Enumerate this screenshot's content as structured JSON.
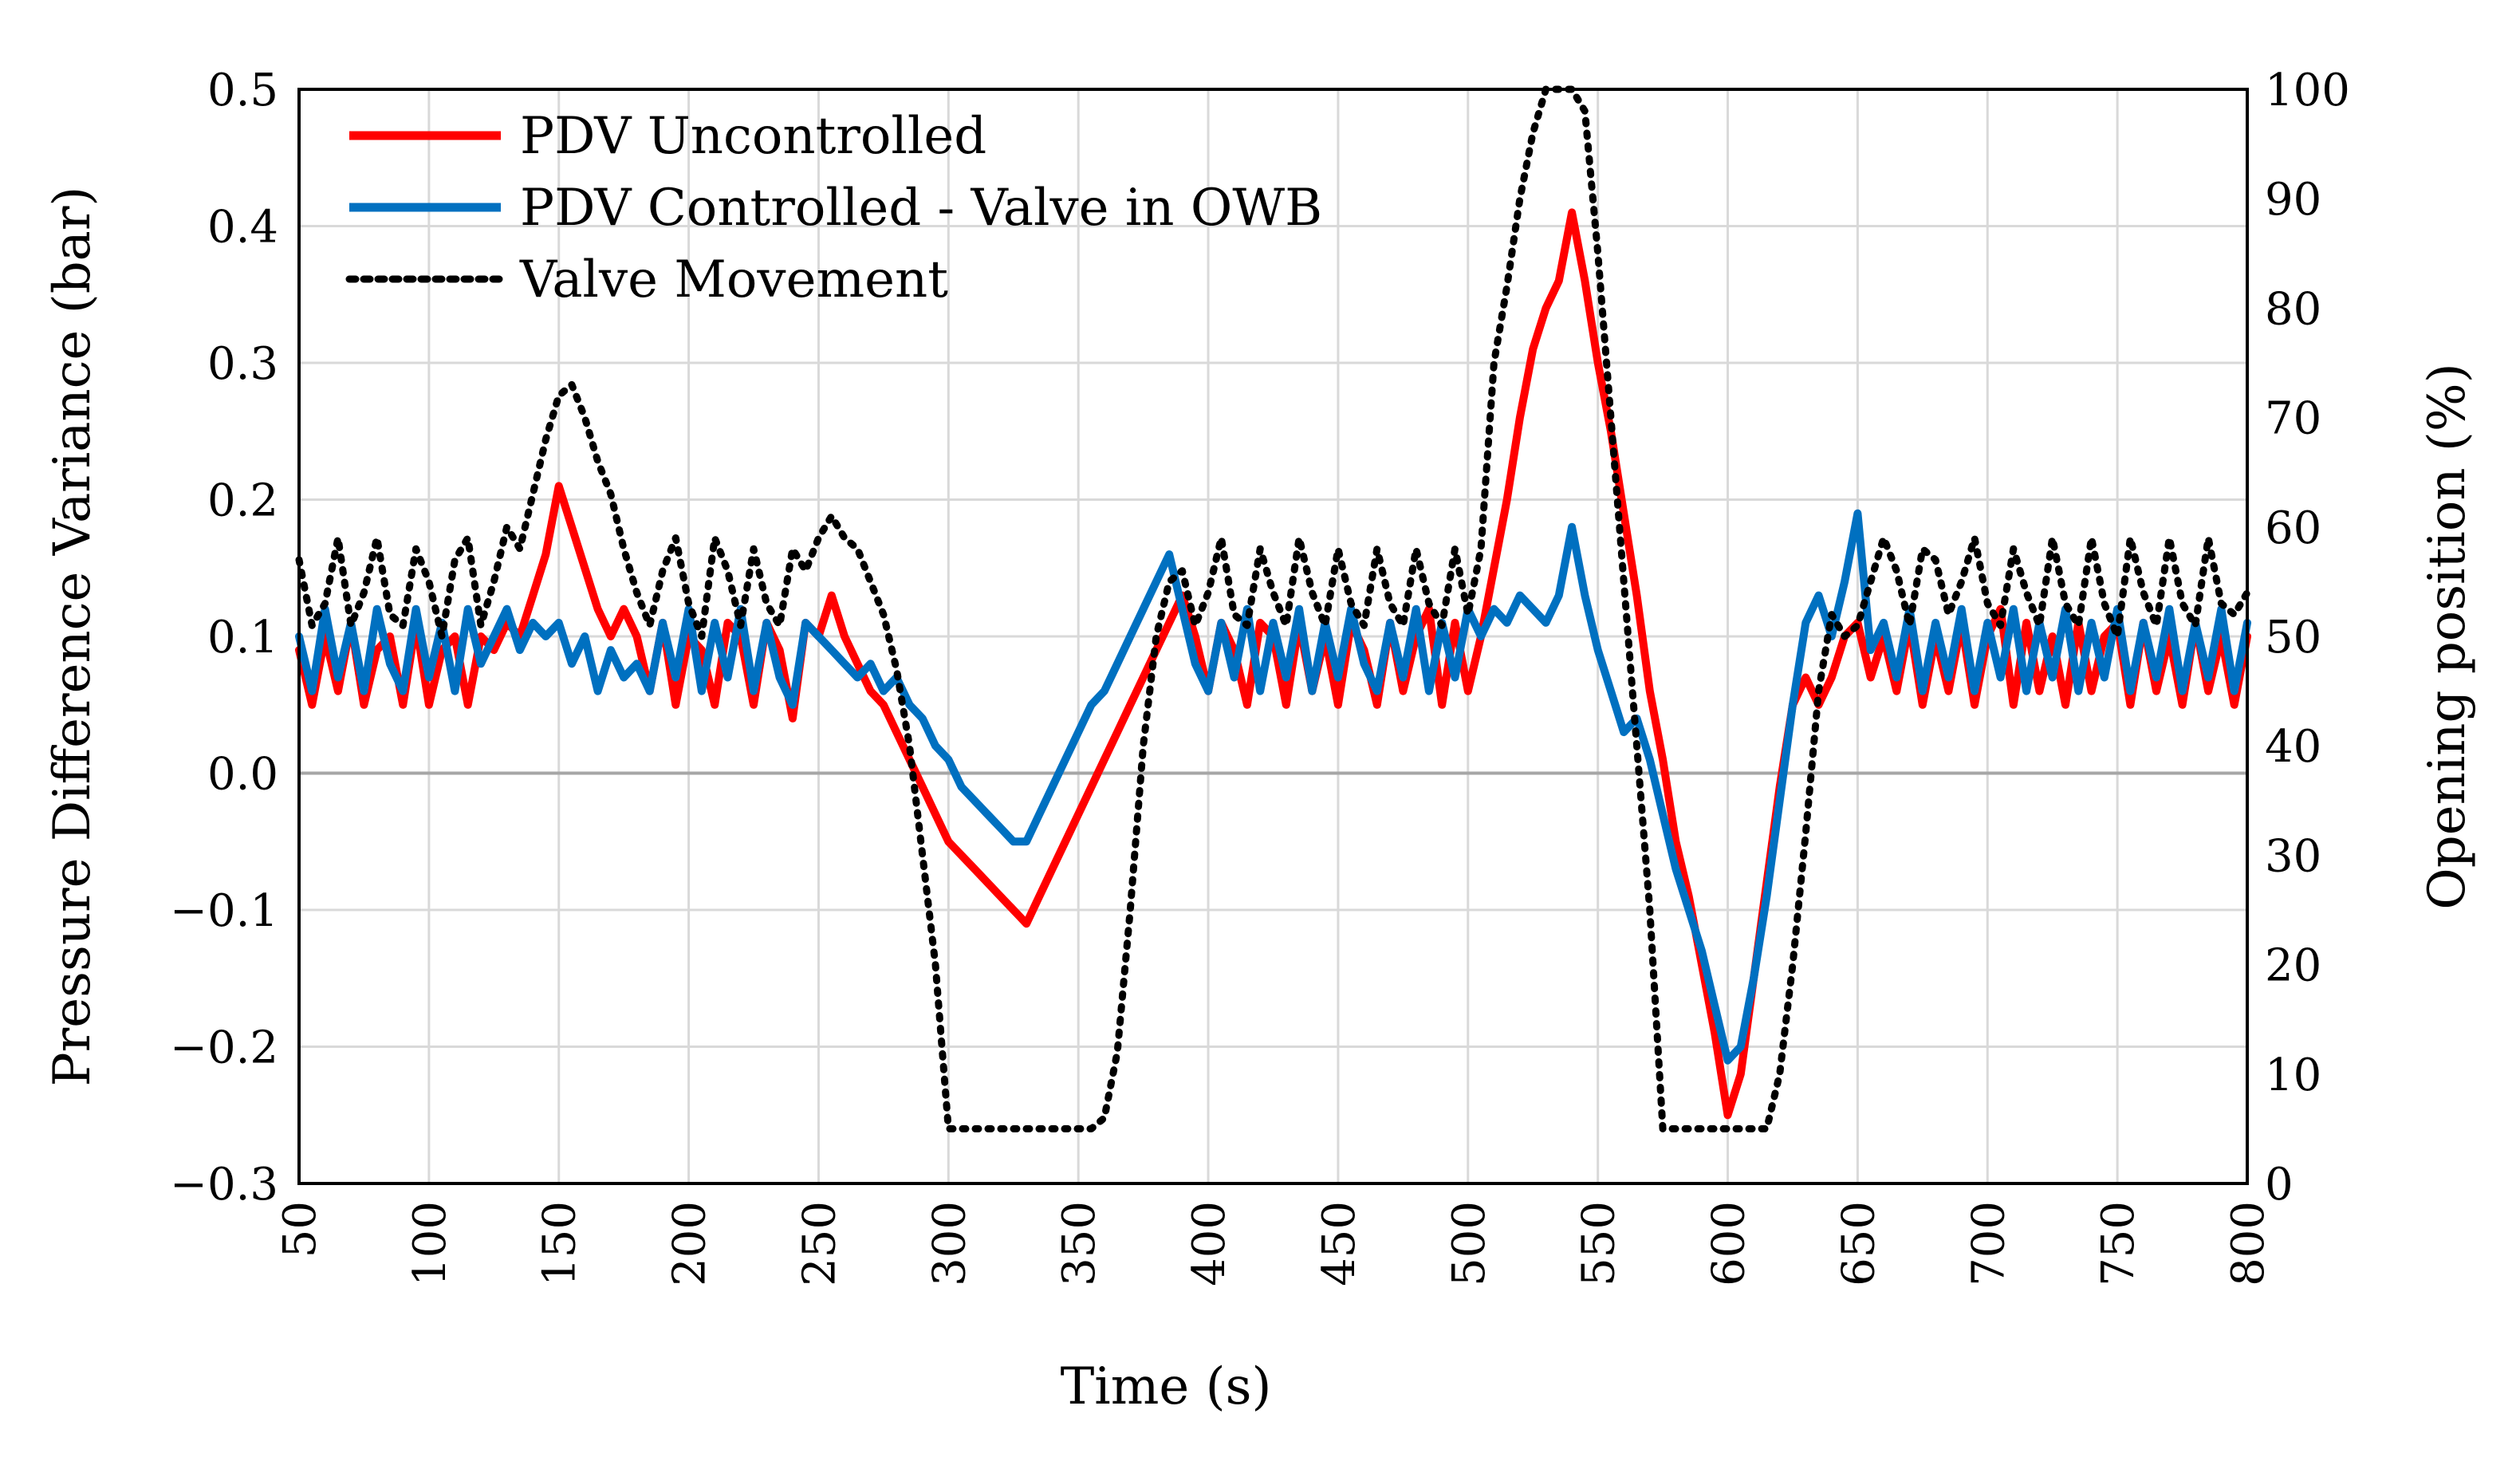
{
  "chart_data": {
    "type": "line",
    "title": "",
    "xlabel": "Time (s)",
    "ylabel_left": "Pressure Difference Variance (bar)",
    "ylabel_right": "Opening position (%)",
    "xlim": [
      50,
      800
    ],
    "ylim_left": [
      -0.3,
      0.5
    ],
    "ylim_right": [
      0,
      100
    ],
    "x_ticks": [
      50,
      100,
      150,
      200,
      250,
      300,
      350,
      400,
      450,
      500,
      550,
      600,
      650,
      700,
      750,
      800
    ],
    "x_tick_labels": [
      "50",
      "100",
      "150",
      "200",
      "250",
      "300",
      "350",
      "400",
      "450",
      "500",
      "550",
      "600",
      "650",
      "700",
      "750",
      "800"
    ],
    "y_left_ticks": [
      -0.3,
      -0.2,
      -0.1,
      0.0,
      0.1,
      0.2,
      0.3,
      0.4,
      0.5
    ],
    "y_left_tick_labels": [
      "−0.3",
      "−0.2",
      "−0.1",
      "0.0",
      "0.1",
      "0.2",
      "0.3",
      "0.4",
      "0.5"
    ],
    "y_right_ticks": [
      0,
      10,
      20,
      30,
      40,
      50,
      60,
      70,
      80,
      90,
      100
    ],
    "y_right_tick_labels": [
      "0",
      "10",
      "20",
      "30",
      "40",
      "50",
      "60",
      "70",
      "80",
      "90",
      "100"
    ],
    "grid": true,
    "zero_line": true,
    "legend_position": "top-left",
    "series": [
      {
        "name": "PDV Uncontrolled",
        "axis": "left",
        "style": "solid",
        "color": "#ff0000",
        "x": [
          50,
          55,
          60,
          65,
          70,
          75,
          80,
          85,
          90,
          95,
          100,
          105,
          110,
          115,
          120,
          125,
          130,
          135,
          140,
          145,
          150,
          155,
          160,
          165,
          170,
          175,
          180,
          185,
          190,
          195,
          200,
          205,
          210,
          215,
          220,
          225,
          230,
          235,
          240,
          245,
          250,
          255,
          260,
          265,
          270,
          275,
          280,
          285,
          290,
          295,
          300,
          305,
          310,
          315,
          320,
          325,
          330,
          335,
          340,
          345,
          350,
          355,
          360,
          365,
          370,
          375,
          380,
          385,
          390,
          395,
          400,
          405,
          410,
          415,
          420,
          425,
          430,
          435,
          440,
          445,
          450,
          455,
          460,
          465,
          470,
          475,
          480,
          485,
          490,
          495,
          500,
          505,
          510,
          515,
          520,
          525,
          530,
          535,
          540,
          545,
          550,
          555,
          560,
          565,
          570,
          575,
          580,
          585,
          590,
          595,
          600,
          605,
          610,
          615,
          620,
          625,
          630,
          635,
          640,
          645,
          650,
          655,
          660,
          665,
          670,
          675,
          680,
          685,
          690,
          695,
          700,
          705,
          710,
          715,
          720,
          725,
          730,
          735,
          740,
          745,
          750,
          755,
          760,
          765,
          770,
          775,
          780,
          785,
          790,
          795,
          800
        ],
        "y": [
          0.09,
          0.05,
          0.1,
          0.06,
          0.11,
          0.05,
          0.09,
          0.1,
          0.05,
          0.11,
          0.05,
          0.09,
          0.1,
          0.05,
          0.1,
          0.09,
          0.11,
          0.1,
          0.13,
          0.16,
          0.21,
          0.18,
          0.15,
          0.12,
          0.1,
          0.12,
          0.1,
          0.06,
          0.11,
          0.05,
          0.1,
          0.09,
          0.05,
          0.11,
          0.1,
          0.05,
          0.11,
          0.09,
          0.04,
          0.11,
          0.1,
          0.13,
          0.1,
          0.08,
          0.06,
          0.05,
          0.03,
          0.01,
          -0.01,
          -0.03,
          -0.05,
          -0.06,
          -0.07,
          -0.08,
          -0.09,
          -0.1,
          -0.11,
          -0.09,
          -0.07,
          -0.05,
          -0.03,
          -0.01,
          0.01,
          0.03,
          0.05,
          0.07,
          0.09,
          0.11,
          0.13,
          0.1,
          0.06,
          0.11,
          0.09,
          0.05,
          0.11,
          0.1,
          0.05,
          0.11,
          0.06,
          0.1,
          0.05,
          0.11,
          0.09,
          0.05,
          0.11,
          0.06,
          0.1,
          0.12,
          0.05,
          0.11,
          0.06,
          0.1,
          0.15,
          0.2,
          0.26,
          0.31,
          0.34,
          0.36,
          0.41,
          0.36,
          0.3,
          0.25,
          0.19,
          0.13,
          0.06,
          0.01,
          -0.05,
          -0.09,
          -0.14,
          -0.19,
          -0.25,
          -0.22,
          -0.15,
          -0.08,
          -0.01,
          0.05,
          0.07,
          0.05,
          0.07,
          0.1,
          0.11,
          0.07,
          0.1,
          0.06,
          0.11,
          0.05,
          0.1,
          0.06,
          0.11,
          0.05,
          0.1,
          0.12,
          0.05,
          0.11,
          0.06,
          0.1,
          0.05,
          0.11,
          0.06,
          0.1,
          0.11,
          0.05,
          0.11,
          0.06,
          0.1,
          0.05,
          0.11,
          0.06,
          0.1,
          0.05,
          0.1
        ]
      },
      {
        "name": "PDV Controlled - Valve in OWB",
        "axis": "left",
        "style": "solid",
        "color": "#0070c0",
        "x": [
          50,
          55,
          60,
          65,
          70,
          75,
          80,
          85,
          90,
          95,
          100,
          105,
          110,
          115,
          120,
          125,
          130,
          135,
          140,
          145,
          150,
          155,
          160,
          165,
          170,
          175,
          180,
          185,
          190,
          195,
          200,
          205,
          210,
          215,
          220,
          225,
          230,
          235,
          240,
          245,
          250,
          255,
          260,
          265,
          270,
          275,
          280,
          285,
          290,
          295,
          300,
          305,
          310,
          315,
          320,
          325,
          330,
          335,
          340,
          345,
          350,
          355,
          360,
          365,
          370,
          375,
          380,
          385,
          390,
          395,
          400,
          405,
          410,
          415,
          420,
          425,
          430,
          435,
          440,
          445,
          450,
          455,
          460,
          465,
          470,
          475,
          480,
          485,
          490,
          495,
          500,
          505,
          510,
          515,
          520,
          525,
          530,
          535,
          540,
          545,
          550,
          555,
          560,
          565,
          570,
          575,
          580,
          585,
          590,
          595,
          600,
          605,
          610,
          615,
          620,
          625,
          630,
          635,
          640,
          645,
          650,
          655,
          660,
          665,
          670,
          675,
          680,
          685,
          690,
          695,
          700,
          705,
          710,
          715,
          720,
          725,
          730,
          735,
          740,
          745,
          750,
          755,
          760,
          765,
          770,
          775,
          780,
          785,
          790,
          795,
          800
        ],
        "y": [
          0.1,
          0.06,
          0.12,
          0.07,
          0.11,
          0.06,
          0.12,
          0.08,
          0.06,
          0.12,
          0.07,
          0.11,
          0.06,
          0.12,
          0.08,
          0.1,
          0.12,
          0.09,
          0.11,
          0.1,
          0.11,
          0.08,
          0.1,
          0.06,
          0.09,
          0.07,
          0.08,
          0.06,
          0.11,
          0.07,
          0.12,
          0.06,
          0.11,
          0.07,
          0.12,
          0.06,
          0.11,
          0.07,
          0.05,
          0.11,
          0.1,
          0.09,
          0.08,
          0.07,
          0.08,
          0.06,
          0.07,
          0.05,
          0.04,
          0.02,
          0.01,
          -0.01,
          -0.02,
          -0.03,
          -0.04,
          -0.05,
          -0.05,
          -0.03,
          -0.01,
          0.01,
          0.03,
          0.05,
          0.06,
          0.08,
          0.1,
          0.12,
          0.14,
          0.16,
          0.12,
          0.08,
          0.06,
          0.11,
          0.07,
          0.12,
          0.06,
          0.11,
          0.07,
          0.12,
          0.06,
          0.11,
          0.07,
          0.12,
          0.08,
          0.06,
          0.11,
          0.07,
          0.12,
          0.06,
          0.11,
          0.07,
          0.12,
          0.1,
          0.12,
          0.11,
          0.13,
          0.12,
          0.11,
          0.13,
          0.18,
          0.13,
          0.09,
          0.06,
          0.03,
          0.04,
          0.01,
          -0.03,
          -0.07,
          -0.1,
          -0.13,
          -0.17,
          -0.21,
          -0.2,
          -0.15,
          -0.09,
          -0.02,
          0.05,
          0.11,
          0.13,
          0.1,
          0.14,
          0.19,
          0.09,
          0.11,
          0.07,
          0.12,
          0.06,
          0.11,
          0.07,
          0.12,
          0.06,
          0.11,
          0.07,
          0.12,
          0.06,
          0.11,
          0.07,
          0.12,
          0.06,
          0.11,
          0.07,
          0.12,
          0.06,
          0.11,
          0.07,
          0.12,
          0.06,
          0.11,
          0.07,
          0.12,
          0.06,
          0.11
        ]
      },
      {
        "name": "Valve Movement",
        "axis": "right",
        "style": "dotted",
        "color": "#000000",
        "x": [
          50,
          55,
          60,
          65,
          70,
          75,
          80,
          85,
          90,
          95,
          100,
          105,
          110,
          115,
          120,
          125,
          130,
          135,
          140,
          145,
          150,
          155,
          160,
          165,
          170,
          175,
          180,
          185,
          190,
          195,
          200,
          205,
          210,
          215,
          220,
          225,
          230,
          235,
          240,
          245,
          250,
          255,
          260,
          265,
          270,
          275,
          280,
          285,
          290,
          295,
          300,
          305,
          310,
          315,
          320,
          325,
          330,
          335,
          340,
          345,
          350,
          355,
          360,
          365,
          370,
          375,
          380,
          385,
          390,
          395,
          400,
          405,
          410,
          415,
          420,
          425,
          430,
          435,
          440,
          445,
          450,
          455,
          460,
          465,
          470,
          475,
          480,
          485,
          490,
          495,
          500,
          505,
          510,
          515,
          520,
          525,
          530,
          535,
          540,
          545,
          550,
          555,
          560,
          565,
          570,
          575,
          580,
          585,
          590,
          595,
          600,
          605,
          610,
          615,
          620,
          625,
          630,
          635,
          640,
          645,
          650,
          655,
          660,
          665,
          670,
          675,
          680,
          685,
          690,
          695,
          700,
          705,
          710,
          715,
          720,
          725,
          730,
          735,
          740,
          745,
          750,
          755,
          760,
          765,
          770,
          775,
          780,
          785,
          790,
          795,
          800
        ],
        "y": [
          57,
          51,
          53,
          59,
          51,
          54,
          59,
          52,
          51,
          58,
          55,
          50,
          57,
          59,
          51,
          55,
          60,
          58,
          63,
          68,
          72,
          73,
          70,
          66,
          63,
          58,
          54,
          51,
          56,
          59,
          53,
          50,
          59,
          56,
          51,
          58,
          53,
          51,
          58,
          56,
          59,
          61,
          59,
          58,
          55,
          52,
          47,
          40,
          30,
          20,
          5,
          5,
          5,
          5,
          5,
          5,
          5,
          5,
          5,
          5,
          5,
          5,
          6,
          12,
          25,
          40,
          50,
          55,
          56,
          51,
          54,
          59,
          52,
          51,
          58,
          54,
          51,
          59,
          54,
          51,
          58,
          53,
          51,
          58,
          53,
          51,
          58,
          53,
          51,
          58,
          52,
          58,
          75,
          82,
          90,
          96,
          100,
          100,
          100,
          98,
          85,
          70,
          55,
          40,
          25,
          5,
          5,
          5,
          5,
          5,
          5,
          5,
          5,
          5,
          10,
          20,
          32,
          45,
          52,
          50,
          51,
          55,
          59,
          56,
          51,
          58,
          57,
          52,
          55,
          59,
          53,
          51,
          58,
          54,
          51,
          59,
          53,
          51,
          59,
          53,
          50,
          59,
          54,
          51,
          59,
          53,
          51,
          59,
          53,
          52,
          54
        ]
      }
    ]
  }
}
